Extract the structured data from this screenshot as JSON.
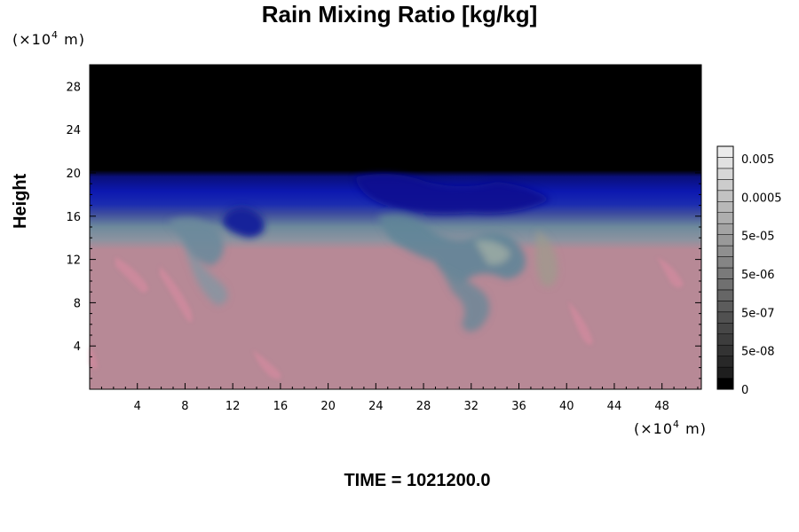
{
  "chart_data": {
    "type": "heatmap",
    "title": "Rain Mixing Ratio [kg/kg]",
    "ylabel": "Height",
    "xunit": {
      "prefix": "(×10",
      "exp": "4",
      "suffix": " m)"
    },
    "yunit": {
      "prefix": "(×10",
      "exp": "4",
      "suffix": " m)"
    },
    "xlim": [
      0,
      51.3
    ],
    "ylim": [
      0,
      30
    ],
    "xticks": [
      4,
      8,
      12,
      16,
      20,
      24,
      28,
      32,
      36,
      40,
      44,
      48
    ],
    "yticks": [
      4,
      8,
      12,
      16,
      20,
      24,
      28
    ],
    "colorbar": {
      "labels": [
        "0.005",
        "0.0005",
        "5e-05",
        "5e-06",
        "5e-07",
        "5e-08",
        "0"
      ],
      "bands": 22
    },
    "layers": [
      {
        "name": "lower",
        "y_range": [
          0,
          13
        ],
        "color": "#b78996"
      },
      {
        "name": "transition",
        "y_range": [
          13,
          16
        ],
        "color": "#6f8c9c"
      },
      {
        "name": "upper",
        "y_range": [
          16,
          20
        ],
        "color": "#0c14a4"
      },
      {
        "name": "top",
        "y_range": [
          20,
          30
        ],
        "color": "#000000"
      }
    ]
  },
  "footer": {
    "time": "TIME = 1021200.0"
  }
}
